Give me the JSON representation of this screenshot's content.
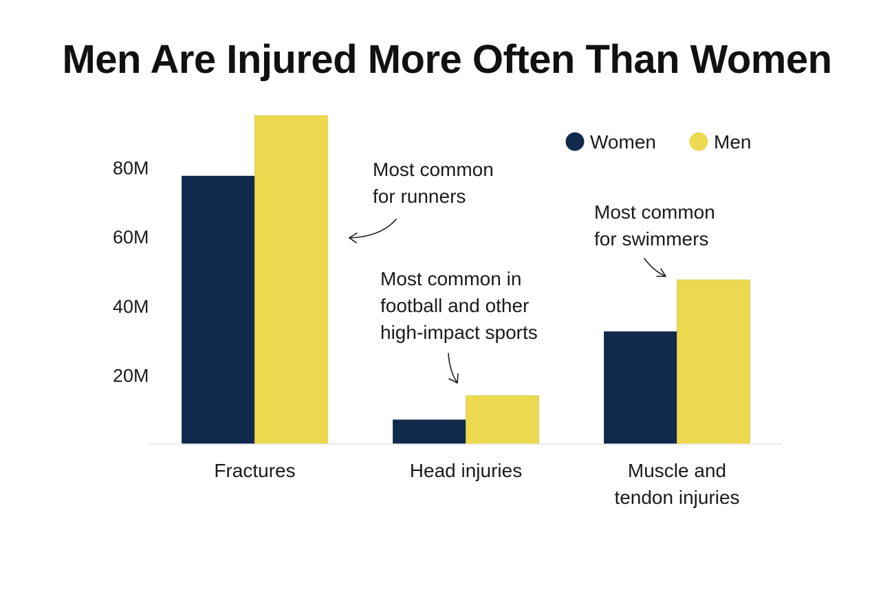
{
  "chart_data": {
    "type": "bar",
    "title": "Men Are Injured More Often Than Women",
    "xlabel": "",
    "ylabel": "",
    "categories": [
      "Fractures",
      "Head injuries",
      "Muscle and tendon injuries"
    ],
    "category_lines": [
      [
        "Fractures"
      ],
      [
        "Head injuries"
      ],
      [
        "Muscle and",
        "tendon injuries"
      ]
    ],
    "series": [
      {
        "name": "Women",
        "color": "#0f2a4d",
        "values": [
          77.5,
          7,
          32.5
        ]
      },
      {
        "name": "Men",
        "color": "#ecd94f",
        "values": [
          95,
          14,
          47.5
        ]
      }
    ],
    "ylim": [
      0,
      100
    ],
    "y_ticks": [
      {
        "value": 20,
        "label": "20M"
      },
      {
        "value": 40,
        "label": "40M"
      },
      {
        "value": 60,
        "label": "60M"
      },
      {
        "value": 80,
        "label": "80M"
      }
    ],
    "grid": false,
    "legend_position": "top-right",
    "annotations": [
      {
        "lines": [
          "Most common",
          "for runners"
        ],
        "target": "Fractures"
      },
      {
        "lines": [
          "Most common in",
          "football and other",
          "high-impact sports"
        ],
        "target": "Head injuries"
      },
      {
        "lines": [
          "Most common",
          "for swimmers"
        ],
        "target": "Muscle and tendon injuries"
      }
    ]
  }
}
